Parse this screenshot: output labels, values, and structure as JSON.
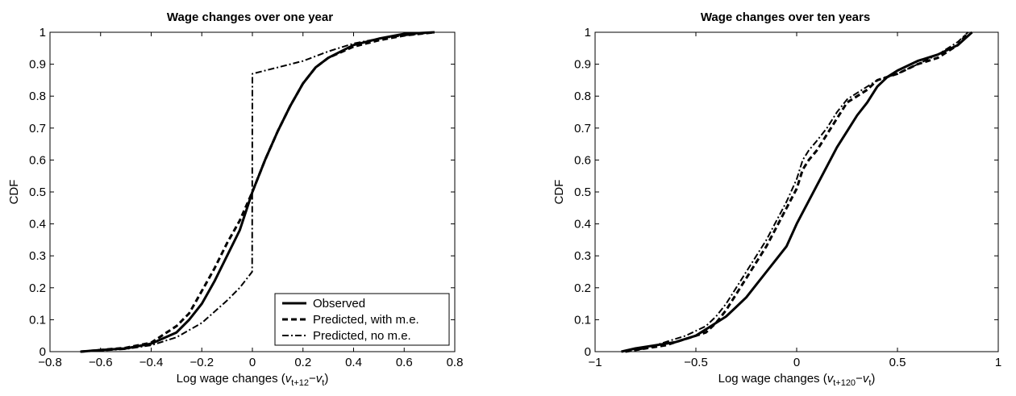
{
  "chart_data": [
    {
      "type": "line",
      "title": "Wage changes over one year",
      "xlabel": {
        "prefix": "Log wage changes (",
        "v1": "v",
        "sub1": "t+12",
        "minus": "−",
        "v2": "v",
        "sub2": "t",
        "suffix": ")"
      },
      "ylabel": "CDF",
      "xlim": [
        -0.8,
        0.8
      ],
      "ylim": [
        0,
        1
      ],
      "xticks": [
        -0.8,
        -0.6,
        -0.4,
        -0.2,
        0,
        0.2,
        0.4,
        0.6,
        0.8
      ],
      "xtick_labels": [
        "−0.8",
        "−0.6",
        "−0.4",
        "−0.2",
        "0",
        "0.2",
        "0.4",
        "0.6",
        "0.8"
      ],
      "yticks": [
        0,
        0.1,
        0.2,
        0.3,
        0.4,
        0.5,
        0.6,
        0.7,
        0.8,
        0.9,
        1
      ],
      "ytick_labels": [
        "0",
        "0.1",
        "0.2",
        "0.3",
        "0.4",
        "0.5",
        "0.6",
        "0.7",
        "0.8",
        "0.9",
        "1"
      ],
      "grid": false,
      "legend": "bottom-right",
      "series": [
        {
          "name": "Observed",
          "style": "solid",
          "x": [
            -0.68,
            -0.6,
            -0.5,
            -0.4,
            -0.3,
            -0.25,
            -0.2,
            -0.15,
            -0.1,
            -0.05,
            0,
            0.05,
            0.1,
            0.15,
            0.2,
            0.25,
            0.3,
            0.4,
            0.5,
            0.6,
            0.72
          ],
          "y": [
            0,
            0.005,
            0.01,
            0.025,
            0.06,
            0.1,
            0.15,
            0.22,
            0.3,
            0.38,
            0.5,
            0.6,
            0.69,
            0.77,
            0.84,
            0.89,
            0.92,
            0.96,
            0.98,
            0.995,
            1
          ]
        },
        {
          "name": "Predicted, with m.e.",
          "style": "dashed",
          "x": [
            -0.68,
            -0.6,
            -0.5,
            -0.4,
            -0.3,
            -0.25,
            -0.2,
            -0.15,
            -0.1,
            -0.05,
            0,
            0.05,
            0.1,
            0.15,
            0.2,
            0.25,
            0.3,
            0.4,
            0.5,
            0.6,
            0.72
          ],
          "y": [
            0,
            0.005,
            0.012,
            0.028,
            0.08,
            0.12,
            0.19,
            0.26,
            0.34,
            0.41,
            0.5,
            0.6,
            0.69,
            0.77,
            0.84,
            0.89,
            0.92,
            0.955,
            0.975,
            0.99,
            1
          ]
        },
        {
          "name": "Predicted, no m.e.",
          "style": "dashdot",
          "x": [
            -0.68,
            -0.6,
            -0.5,
            -0.4,
            -0.3,
            -0.2,
            -0.1,
            -0.05,
            -0.001,
            0,
            0.05,
            0.1,
            0.2,
            0.3,
            0.4,
            0.5,
            0.6,
            0.72
          ],
          "y": [
            0,
            0.003,
            0.008,
            0.02,
            0.045,
            0.09,
            0.16,
            0.2,
            0.25,
            0.87,
            0.88,
            0.89,
            0.91,
            0.94,
            0.965,
            0.98,
            0.99,
            1
          ]
        }
      ]
    },
    {
      "type": "line",
      "title": "Wage changes over ten years",
      "xlabel": {
        "prefix": "Log wage changes (",
        "v1": "v",
        "sub1": "t+120",
        "minus": "−",
        "v2": "v",
        "sub2": "t",
        "suffix": ")"
      },
      "ylabel": "CDF",
      "xlim": [
        -1,
        1
      ],
      "ylim": [
        0,
        1
      ],
      "xticks": [
        -1,
        -0.5,
        0,
        0.5,
        1
      ],
      "xtick_labels": [
        "−1",
        "−0.5",
        "0",
        "0.5",
        "1"
      ],
      "yticks": [
        0,
        0.1,
        0.2,
        0.3,
        0.4,
        0.5,
        0.6,
        0.7,
        0.8,
        0.9,
        1
      ],
      "ytick_labels": [
        "0",
        "0.1",
        "0.2",
        "0.3",
        "0.4",
        "0.5",
        "0.6",
        "0.7",
        "0.8",
        "0.9",
        "1"
      ],
      "grid": false,
      "legend": "none",
      "series": [
        {
          "name": "",
          "style": "solid",
          "x": [
            -0.87,
            -0.8,
            -0.7,
            -0.6,
            -0.5,
            -0.45,
            -0.4,
            -0.35,
            -0.3,
            -0.25,
            -0.2,
            -0.15,
            -0.1,
            -0.05,
            0,
            0.05,
            0.1,
            0.15,
            0.2,
            0.25,
            0.3,
            0.35,
            0.4,
            0.45,
            0.5,
            0.6,
            0.7,
            0.8,
            0.87
          ],
          "y": [
            0,
            0.01,
            0.02,
            0.03,
            0.05,
            0.07,
            0.09,
            0.11,
            0.14,
            0.17,
            0.21,
            0.25,
            0.29,
            0.33,
            0.4,
            0.46,
            0.52,
            0.58,
            0.64,
            0.69,
            0.74,
            0.78,
            0.83,
            0.86,
            0.88,
            0.91,
            0.93,
            0.96,
            1
          ]
        },
        {
          "name": "",
          "style": "dashed",
          "x": [
            -0.85,
            -0.75,
            -0.65,
            -0.55,
            -0.45,
            -0.4,
            -0.35,
            -0.3,
            -0.25,
            -0.2,
            -0.15,
            -0.1,
            -0.05,
            0,
            0.03,
            0.06,
            0.1,
            0.15,
            0.2,
            0.25,
            0.3,
            0.35,
            0.4,
            0.45,
            0.5,
            0.6,
            0.7,
            0.8,
            0.85
          ],
          "y": [
            0,
            0.01,
            0.02,
            0.04,
            0.06,
            0.09,
            0.13,
            0.18,
            0.23,
            0.28,
            0.33,
            0.39,
            0.45,
            0.51,
            0.57,
            0.6,
            0.63,
            0.68,
            0.73,
            0.78,
            0.8,
            0.82,
            0.85,
            0.86,
            0.87,
            0.9,
            0.92,
            0.96,
            1
          ]
        },
        {
          "name": "",
          "style": "dashdot",
          "x": [
            -0.85,
            -0.75,
            -0.65,
            -0.55,
            -0.45,
            -0.4,
            -0.35,
            -0.3,
            -0.25,
            -0.2,
            -0.15,
            -0.1,
            -0.05,
            0,
            0.03,
            0.06,
            0.1,
            0.15,
            0.2,
            0.25,
            0.3,
            0.35,
            0.4,
            0.45,
            0.5,
            0.6,
            0.7,
            0.8,
            0.85
          ],
          "y": [
            0,
            0.01,
            0.03,
            0.05,
            0.08,
            0.11,
            0.15,
            0.2,
            0.25,
            0.3,
            0.35,
            0.41,
            0.47,
            0.54,
            0.6,
            0.63,
            0.66,
            0.7,
            0.75,
            0.79,
            0.81,
            0.83,
            0.85,
            0.86,
            0.87,
            0.9,
            0.93,
            0.97,
            1
          ]
        }
      ]
    }
  ]
}
